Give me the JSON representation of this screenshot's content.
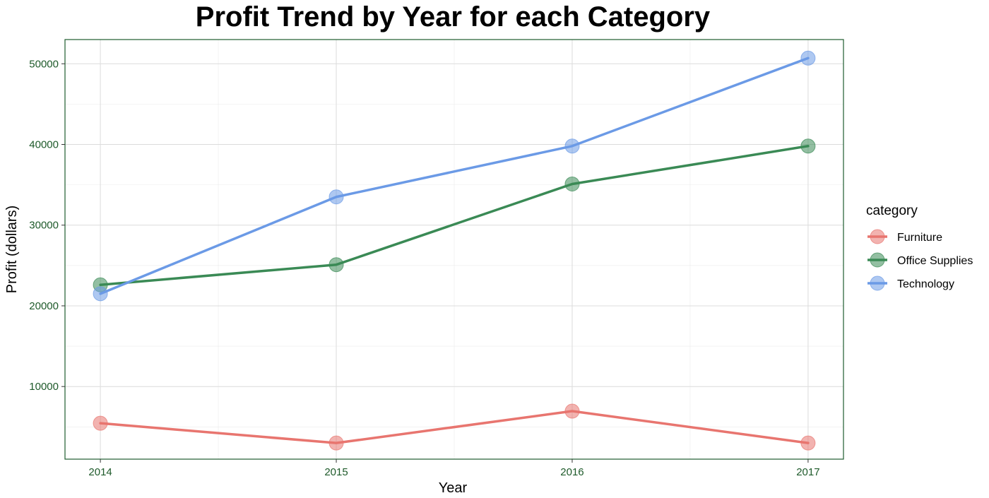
{
  "chart_data": {
    "type": "line",
    "title": "Profit Trend by Year for each Category",
    "xlabel": "Year",
    "ylabel": "Profit (dollars)",
    "x": [
      "2014",
      "2015",
      "2016",
      "2017"
    ],
    "xlim": [
      2013.85,
      2017.15
    ],
    "ylim": [
      1000,
      53000
    ],
    "y_ticks": [
      10000,
      20000,
      30000,
      40000,
      50000
    ],
    "y_tick_labels": [
      "10000",
      "20000",
      "30000",
      "40000",
      "50000"
    ],
    "grid": true,
    "legend_title": "category",
    "legend_position": "right",
    "tick_color": "#1e5a2a",
    "panel_border_color": "#1f5c2e",
    "series": [
      {
        "name": "Furniture",
        "color": "#e8756f",
        "values": [
          5450,
          3000,
          6950,
          3000
        ]
      },
      {
        "name": "Office Supplies",
        "color": "#3a8a55",
        "values": [
          22600,
          25100,
          35100,
          39800
        ]
      },
      {
        "name": "Technology",
        "color": "#6b9ae6",
        "values": [
          21500,
          33500,
          39800,
          50700
        ]
      }
    ]
  }
}
